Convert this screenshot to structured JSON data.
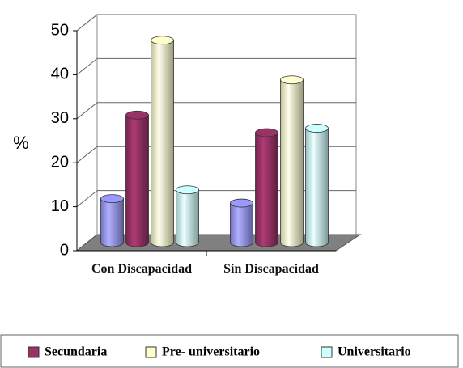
{
  "chart_data": {
    "type": "bar3d",
    "y_label": "%",
    "categories": [
      "Con Discapacidad",
      "Sin Discapacidad"
    ],
    "series": [
      {
        "name": null,
        "color": "#9999ff",
        "values": [
          10,
          9
        ]
      },
      {
        "name": "Secundaria",
        "color": "#993366",
        "values": [
          29,
          25
        ]
      },
      {
        "name": "Pre- universitario",
        "color": "#ffffcc",
        "values": [
          46,
          37
        ]
      },
      {
        "name": "Universitario",
        "color": "#ccffff",
        "values": [
          12,
          26
        ]
      }
    ],
    "ylim": [
      0,
      50
    ],
    "yticks": [
      0,
      10,
      20,
      30,
      40,
      50
    ],
    "grid": true
  }
}
